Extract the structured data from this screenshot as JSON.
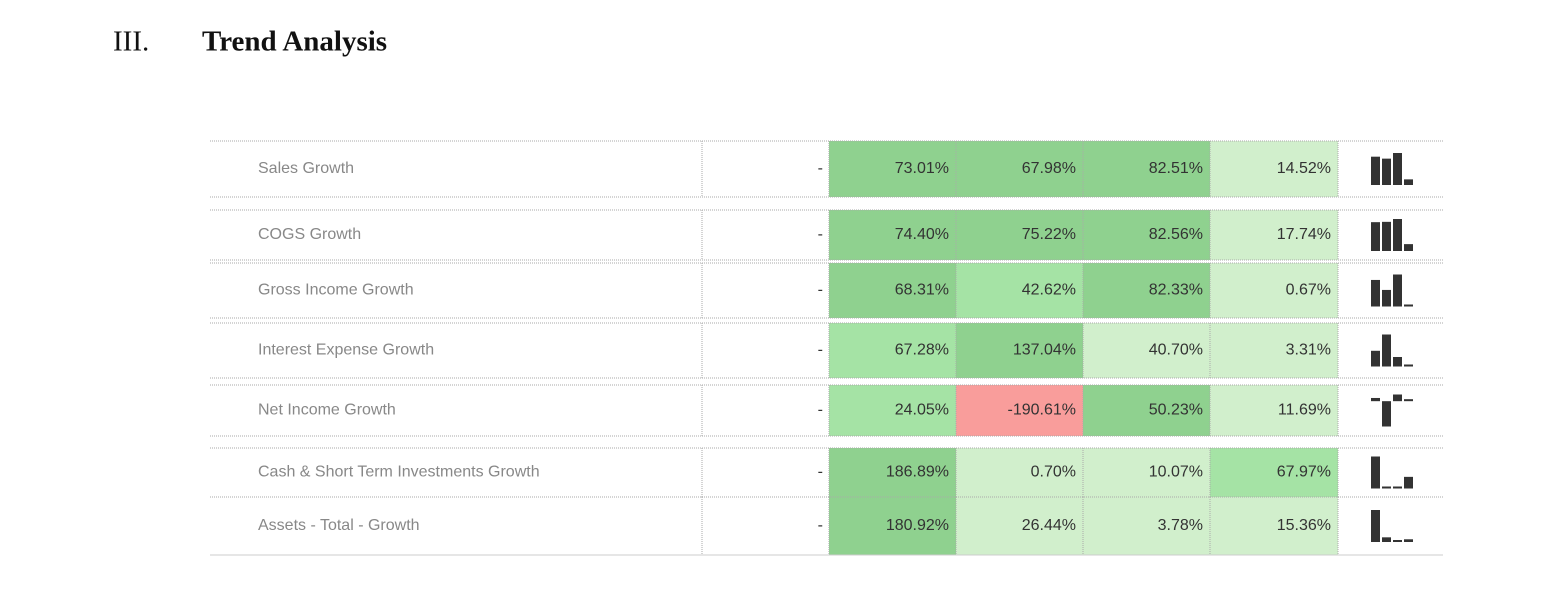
{
  "header": {
    "number": "III.",
    "title": "Trend Analysis"
  },
  "table": {
    "rows": [
      {
        "label": "Sales Growth",
        "base": "-",
        "values": [
          73.01,
          67.98,
          82.51,
          14.52
        ],
        "value_labels": [
          "73.01%",
          "67.98%",
          "82.51%",
          "14.52%"
        ],
        "colors": [
          "#8fd18f",
          "#8fd18f",
          "#8fd18f",
          "#d1efcc"
        ]
      },
      {
        "label": "COGS Growth",
        "base": "-",
        "values": [
          74.4,
          75.22,
          82.56,
          17.74
        ],
        "value_labels": [
          "74.40%",
          "75.22%",
          "82.56%",
          "17.74%"
        ],
        "colors": [
          "#8fd18f",
          "#8fd18f",
          "#8fd18f",
          "#d1efcc"
        ]
      },
      {
        "label": "Gross Income Growth",
        "base": "-",
        "values": [
          68.31,
          42.62,
          82.33,
          0.67
        ],
        "value_labels": [
          "68.31%",
          "42.62%",
          "82.33%",
          "0.67%"
        ],
        "colors": [
          "#8fd18f",
          "#a5e3a5",
          "#8fd18f",
          "#d1efcc"
        ]
      },
      {
        "label": "Interest Expense Growth",
        "base": "-",
        "values": [
          67.28,
          137.04,
          40.7,
          3.31
        ],
        "value_labels": [
          "67.28%",
          "137.04%",
          "40.70%",
          "3.31%"
        ],
        "colors": [
          "#a5e3a5",
          "#8fd18f",
          "#d1efcc",
          "#d1efcc"
        ]
      },
      {
        "label": "Net Income Growth",
        "base": "-",
        "values": [
          24.05,
          -190.61,
          50.23,
          11.69
        ],
        "value_labels": [
          "24.05%",
          "-190.61%",
          "50.23%",
          "11.69%"
        ],
        "colors": [
          "#a5e3a5",
          "#f99d9b",
          "#8fd18f",
          "#d1efcc"
        ]
      },
      {
        "label": "Cash & Short Term Investments Growth",
        "base": "-",
        "values": [
          186.89,
          0.7,
          10.07,
          67.97
        ],
        "value_labels": [
          "186.89%",
          "0.70%",
          "10.07%",
          "67.97%"
        ],
        "colors": [
          "#8fd18f",
          "#d1efcc",
          "#d1efcc",
          "#a5e3a5"
        ]
      },
      {
        "label": "Assets - Total - Growth",
        "base": "-",
        "values": [
          180.92,
          26.44,
          3.78,
          15.36
        ],
        "value_labels": [
          "180.92%",
          "26.44%",
          "3.78%",
          "15.36%"
        ],
        "colors": [
          "#8fd18f",
          "#d1efcc",
          "#d1efcc",
          "#d1efcc"
        ]
      }
    ]
  }
}
